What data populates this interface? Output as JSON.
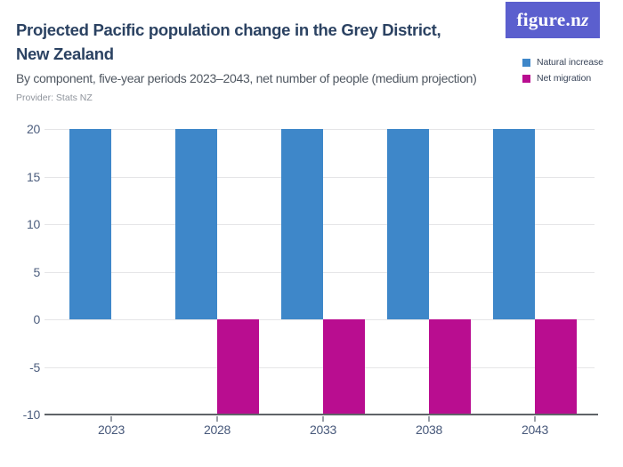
{
  "logo": {
    "text_main": "figure.n",
    "text_italic": "z",
    "bg_color": "#5b5fce",
    "text_color": "#ffffff"
  },
  "header": {
    "title": "Projected Pacific population change in the Grey District, New Zealand",
    "subtitle": "By component, five-year periods 2023–2043, net number of people (medium projection)",
    "provider": "Provider: Stats NZ"
  },
  "chart_data": {
    "type": "bar",
    "title": "Projected Pacific population change in the Grey District, New Zealand",
    "subtitle": "By component, five-year periods 2023–2043, net number of people (medium projection)",
    "categories": [
      "2023",
      "2028",
      "2033",
      "2038",
      "2043"
    ],
    "series": [
      {
        "name": "Natural increase",
        "color": "#3e87c9",
        "values": [
          20,
          20,
          20,
          20,
          20
        ]
      },
      {
        "name": "Net migration",
        "color": "#b90d90",
        "values": [
          0,
          -10,
          -10,
          -10,
          -10
        ]
      }
    ],
    "xlabel": "",
    "ylabel": "",
    "ylim": [
      -10,
      20
    ],
    "yticks": [
      20,
      15,
      10,
      5,
      0,
      -5,
      -10
    ],
    "grid": true,
    "legend_position": "top-right"
  },
  "colors": {
    "natural_increase": "#3e87c9",
    "net_migration": "#b90d90",
    "title_text": "#2b4262",
    "axis_text": "#4d5e7e",
    "gridline": "#e5e5e7",
    "axis_line": "#5f6368",
    "logo_bg": "#5b5fce"
  }
}
